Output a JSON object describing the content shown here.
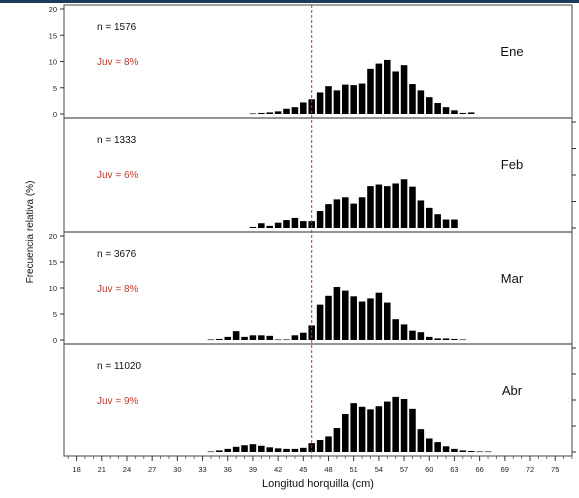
{
  "chart_data": {
    "type": "bar",
    "title": "",
    "xlabel": "Longitud horquilla (cm)",
    "ylabel": "Frecuencia relativa (%)",
    "xlim": [
      16.5,
      77
    ],
    "x_ticks": [
      18,
      21,
      24,
      27,
      30,
      33,
      36,
      39,
      42,
      45,
      48,
      51,
      54,
      57,
      60,
      63,
      66,
      69,
      72,
      75
    ],
    "ylim": [
      0,
      20
    ],
    "y_ticks": [
      0,
      5,
      10,
      15,
      20
    ],
    "reference_line": {
      "x": 46,
      "color": "#c0392b",
      "style": "dashed"
    },
    "bar_color": "#000000",
    "annotation_color": "#c0392b",
    "panels": [
      {
        "month": "Ene",
        "n_label": "n = 1576",
        "juv_label": "Juv = 8%",
        "y_axis_side": "left",
        "x": [
          39,
          40,
          41,
          42,
          43,
          44,
          45,
          46,
          47,
          48,
          49,
          50,
          51,
          52,
          53,
          54,
          55,
          56,
          57,
          58,
          59,
          60,
          61,
          62,
          63,
          64,
          65
        ],
        "values": [
          0.1,
          0.2,
          0.3,
          0.5,
          1.0,
          1.3,
          2.2,
          2.8,
          4.1,
          5.3,
          4.5,
          5.6,
          5.5,
          5.8,
          8.6,
          9.6,
          10.3,
          8.1,
          9.3,
          5.7,
          4.5,
          3.2,
          2.1,
          1.3,
          0.7,
          0.2,
          0.3
        ]
      },
      {
        "month": "Feb",
        "n_label": "n = 1333",
        "juv_label": "Juv = 6%",
        "y_axis_side": "right",
        "x": [
          39,
          40,
          41,
          42,
          43,
          44,
          45,
          46,
          47,
          48,
          49,
          50,
          51,
          52,
          53,
          54,
          55,
          56,
          57,
          58,
          59,
          60,
          61,
          62,
          63
        ],
        "values": [
          0.2,
          0.9,
          0.4,
          1.0,
          1.5,
          1.9,
          1.3,
          1.3,
          3.2,
          4.5,
          5.4,
          5.8,
          4.6,
          5.8,
          7.9,
          8.2,
          7.9,
          8.4,
          9.2,
          7.8,
          5.2,
          3.8,
          2.6,
          1.6,
          1.6
        ]
      },
      {
        "month": "Mar",
        "n_label": "n = 3676",
        "juv_label": "Juv = 8%",
        "y_axis_side": "left",
        "x": [
          34,
          35,
          36,
          37,
          38,
          39,
          40,
          41,
          42,
          43,
          44,
          45,
          46,
          47,
          48,
          49,
          50,
          51,
          52,
          53,
          54,
          55,
          56,
          57,
          58,
          59,
          60,
          61,
          62,
          63,
          64
        ],
        "values": [
          0.1,
          0.2,
          0.6,
          1.7,
          0.6,
          0.9,
          0.9,
          0.8,
          0.1,
          0.1,
          0.9,
          1.4,
          2.8,
          6.8,
          8.5,
          10.2,
          9.5,
          8.4,
          7.4,
          8.0,
          9.1,
          7.2,
          4.0,
          3.0,
          1.8,
          1.5,
          0.6,
          0.3,
          0.3,
          0.2,
          0.1
        ]
      },
      {
        "month": "Abr",
        "n_label": "n = 11020",
        "juv_label": "Juv = 9%",
        "y_axis_side": "right",
        "x": [
          34,
          35,
          36,
          37,
          38,
          39,
          40,
          41,
          42,
          43,
          44,
          45,
          46,
          47,
          48,
          49,
          50,
          51,
          52,
          53,
          54,
          55,
          56,
          57,
          58,
          59,
          60,
          61,
          62,
          63,
          64,
          65,
          66,
          67
        ],
        "values": [
          0.1,
          0.3,
          0.6,
          1.0,
          1.3,
          1.5,
          1.2,
          0.9,
          0.7,
          0.6,
          0.6,
          0.8,
          1.7,
          2.3,
          3.0,
          4.6,
          7.3,
          9.4,
          8.7,
          8.2,
          8.8,
          9.7,
          10.6,
          10.2,
          8.3,
          4.4,
          2.6,
          1.9,
          1.1,
          0.6,
          0.3,
          0.2,
          0.1,
          0.1
        ]
      }
    ]
  }
}
